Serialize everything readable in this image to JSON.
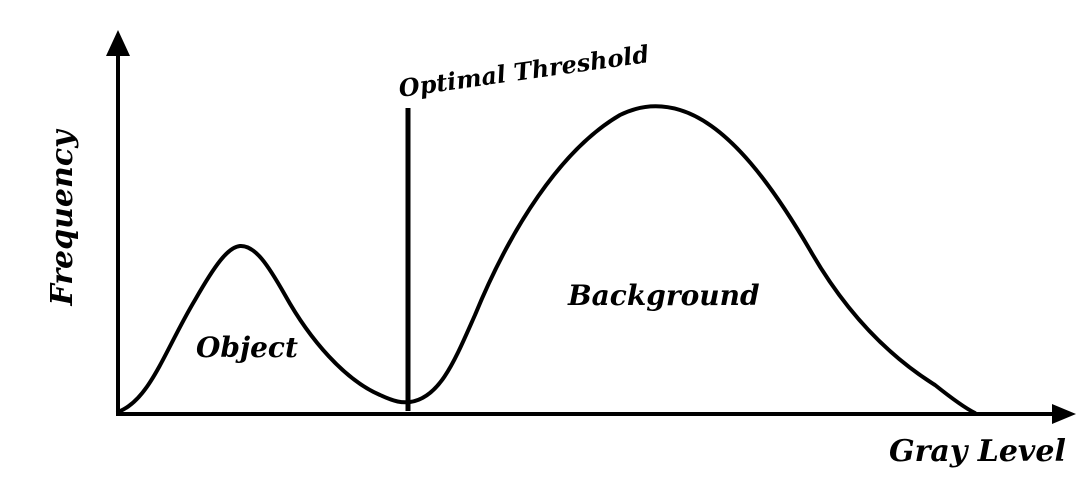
{
  "figure": {
    "y_axis_label": "Frequency",
    "x_axis_label": "Gray Level",
    "threshold_label": "Optimal Threshold",
    "object_label": "Object",
    "background_label": "Background"
  },
  "colors": {
    "line": "#000000",
    "background": "#ffffff"
  }
}
